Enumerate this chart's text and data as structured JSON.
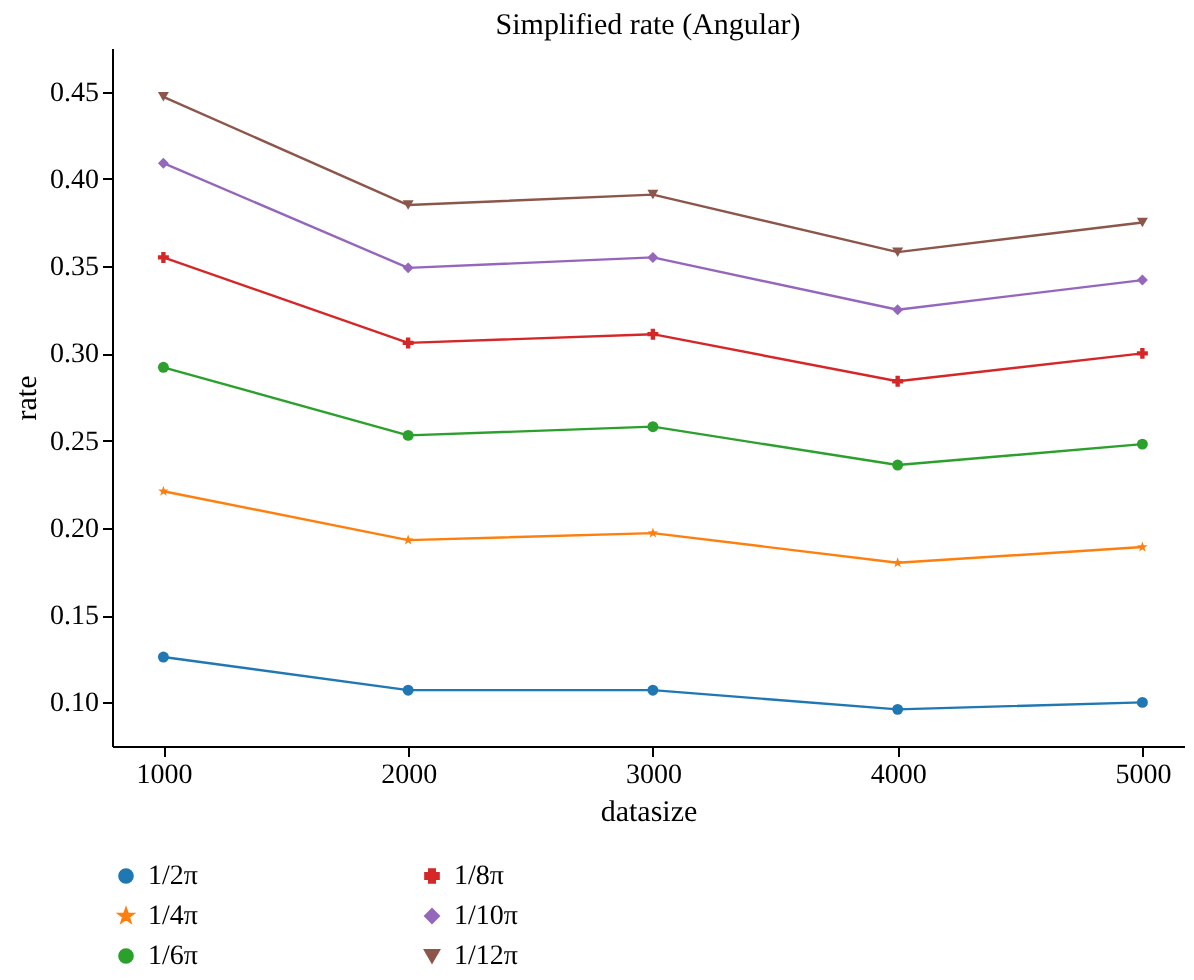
{
  "chart_data": {
    "type": "line",
    "title": "Simplified rate (Angular)",
    "xlabel": "datasize",
    "ylabel": "rate",
    "x": [
      1000,
      2000,
      3000,
      4000,
      5000
    ],
    "series": [
      {
        "name": "1/2π",
        "color": "#1f77b4",
        "marker": "circle",
        "values": [
          0.126,
          0.107,
          0.107,
          0.096,
          0.1
        ]
      },
      {
        "name": "1/4π",
        "color": "#ff7f0e",
        "marker": "star",
        "values": [
          0.221,
          0.193,
          0.197,
          0.18,
          0.189
        ]
      },
      {
        "name": "1/6π",
        "color": "#2ca02c",
        "marker": "circle",
        "values": [
          0.292,
          0.253,
          0.258,
          0.236,
          0.248
        ]
      },
      {
        "name": "1/8π",
        "color": "#d62728",
        "marker": "cross",
        "values": [
          0.355,
          0.306,
          0.311,
          0.284,
          0.3
        ]
      },
      {
        "name": "1/10π",
        "color": "#9467bd",
        "marker": "diamond",
        "values": [
          0.409,
          0.349,
          0.355,
          0.325,
          0.342
        ]
      },
      {
        "name": "1/12π",
        "color": "#8c564b",
        "marker": "triangle",
        "values": [
          0.447,
          0.385,
          0.391,
          0.358,
          0.375
        ]
      }
    ],
    "xlim": [
      790,
      5170
    ],
    "xticks": [
      1000,
      2000,
      3000,
      4000,
      5000
    ],
    "ylim": [
      0.075,
      0.475
    ],
    "yticks": [
      {
        "value": 0.1,
        "label": "0.10"
      },
      0.15,
      {
        "value": 0.2,
        "label": "0.20"
      },
      0.25,
      {
        "value": 0.3,
        "label": "0.30"
      },
      0.35,
      {
        "value": 0.4,
        "label": "0.40"
      },
      0.45
    ],
    "grid": false,
    "legend": "bottom",
    "line_style": "solid"
  }
}
